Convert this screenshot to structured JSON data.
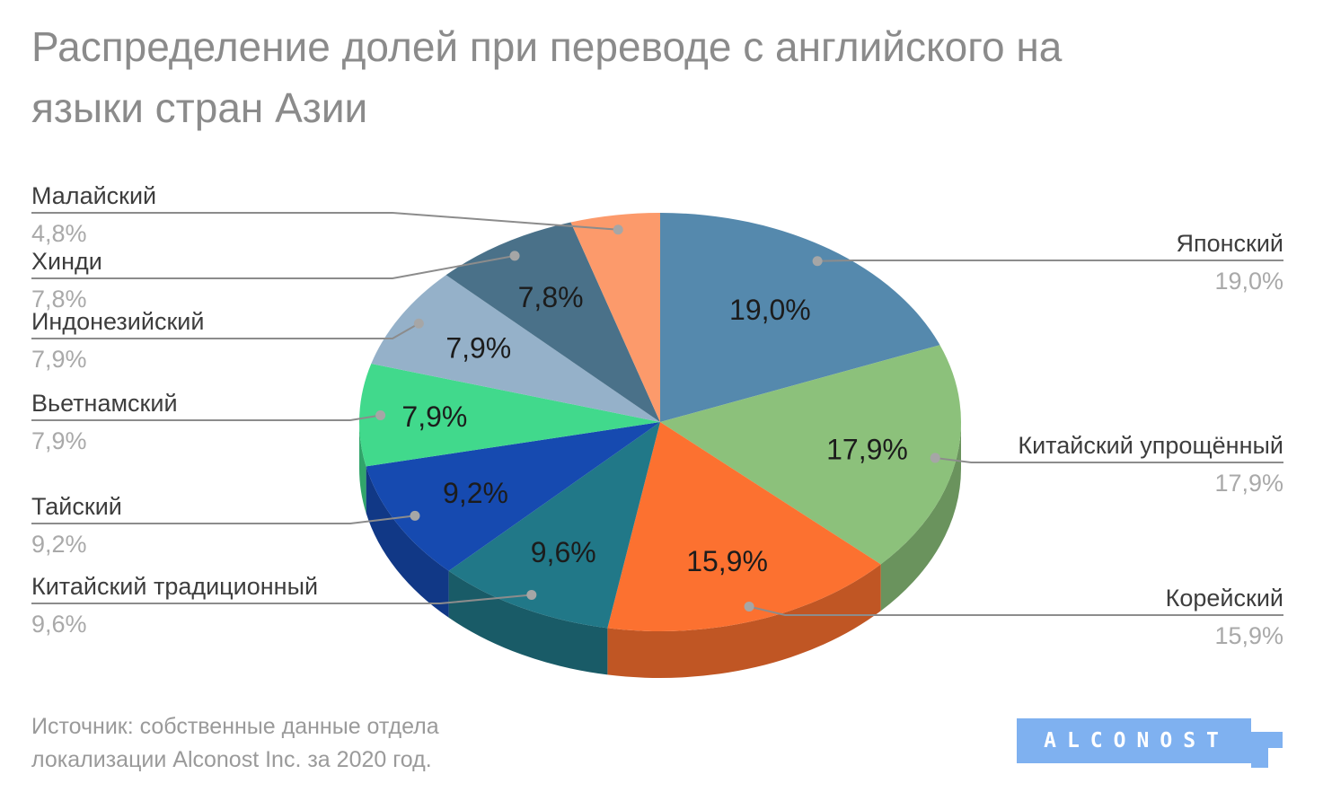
{
  "title": {
    "line1": "Распределение долей при переводе с английского на",
    "line2": "языки стран Азии"
  },
  "source": {
    "line1": "Источник: собственные данные отдела",
    "line2": "локализации Alconost Inc. за 2020 год."
  },
  "logo": {
    "text": "ALCONOST"
  },
  "chart_data": {
    "type": "pie",
    "title": "Распределение долей при переводе с английского на языки стран Азии",
    "unit": "%",
    "legend_position": "callouts",
    "slices": [
      {
        "label": "Японский",
        "value": 19.0,
        "display": "19,0%",
        "color": "#5589AD",
        "label_side": "right"
      },
      {
        "label": "Китайский упрощённый",
        "value": 17.9,
        "display": "17,9%",
        "color": "#8CC17B",
        "label_side": "right"
      },
      {
        "label": "Корейский",
        "value": 15.9,
        "display": "15,9%",
        "color": "#FC7130",
        "label_side": "right"
      },
      {
        "label": "Китайский традиционный",
        "value": 9.6,
        "display": "9,6%",
        "color": "#217888",
        "label_side": "left"
      },
      {
        "label": "Тайский",
        "value": 9.2,
        "display": "9,2%",
        "color": "#164AB0",
        "label_side": "left"
      },
      {
        "label": "Вьетнамский",
        "value": 7.9,
        "display": "7,9%",
        "color": "#41D98C",
        "label_side": "left"
      },
      {
        "label": "Индонезийский",
        "value": 7.9,
        "display": "7,9%",
        "color": "#95B1C9",
        "label_side": "left"
      },
      {
        "label": "Хинди",
        "value": 7.8,
        "display": "7,8%",
        "color": "#4A7189",
        "label_side": "left"
      },
      {
        "label": "Малайский",
        "value": 4.8,
        "display": "4,8%",
        "color": "#FC9A6B",
        "label_side": "left"
      }
    ]
  }
}
